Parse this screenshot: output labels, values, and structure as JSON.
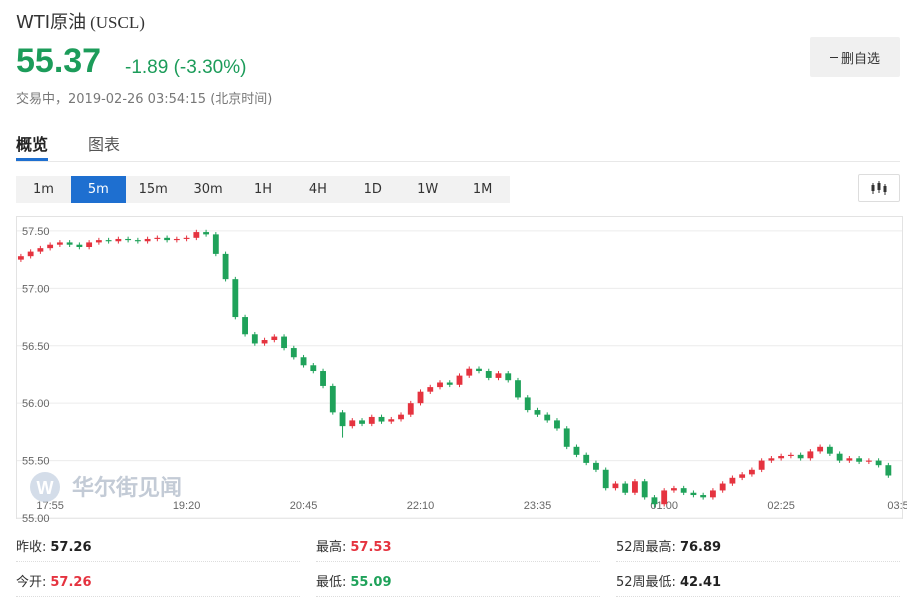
{
  "header": {
    "name": "WTI原油",
    "code": "(USCL)",
    "price": "55.37",
    "change": "-1.89",
    "change_pct": "(-3.30%)",
    "status": "交易中，2019-02-26 03:54:15 (北京时间)",
    "button": "删自选"
  },
  "tabs": [
    {
      "label": "概览",
      "active": true
    },
    {
      "label": "图表",
      "active": false
    }
  ],
  "intervals": {
    "options": [
      "1m",
      "5m",
      "15m",
      "30m",
      "1H",
      "4H",
      "1D",
      "1W",
      "1M"
    ],
    "active": 1
  },
  "chart_data": {
    "type": "candlestick",
    "watermark": "华尔街见闻",
    "up_color": "#e5333f",
    "down_color": "#1fa25a",
    "grid": true,
    "x": [
      0,
      1,
      2,
      3,
      4,
      5,
      6,
      7,
      8,
      9,
      10,
      11,
      12,
      13,
      14,
      15,
      16,
      17,
      18,
      19,
      20,
      21,
      22,
      23,
      24,
      25,
      26,
      27,
      28,
      29,
      30,
      31,
      32,
      33,
      34,
      35,
      36,
      37,
      38,
      39,
      40,
      41,
      42,
      43,
      44,
      45,
      46,
      47,
      48,
      49,
      50,
      51,
      52,
      53,
      54,
      55,
      56,
      57,
      58,
      59,
      60,
      61,
      62,
      63,
      64,
      65,
      66,
      67,
      68,
      69,
      70,
      71,
      72,
      73,
      74,
      75,
      76,
      77,
      78,
      79,
      80,
      81,
      82,
      83,
      84,
      85,
      86,
      87,
      88,
      89
    ],
    "open": [
      57.25,
      57.28,
      57.32,
      57.35,
      57.38,
      57.4,
      57.38,
      57.36,
      57.4,
      57.42,
      57.41,
      57.43,
      57.42,
      57.41,
      57.43,
      57.44,
      57.42,
      57.43,
      57.44,
      57.49,
      57.47,
      57.3,
      57.08,
      56.75,
      56.6,
      56.52,
      56.55,
      56.58,
      56.48,
      56.4,
      56.33,
      56.28,
      56.15,
      55.92,
      55.8,
      55.85,
      55.82,
      55.88,
      55.84,
      55.86,
      55.9,
      56.0,
      56.1,
      56.14,
      56.18,
      56.16,
      56.24,
      56.3,
      56.28,
      56.22,
      56.26,
      56.2,
      56.05,
      55.94,
      55.9,
      55.85,
      55.78,
      55.62,
      55.55,
      55.48,
      55.42,
      55.26,
      55.3,
      55.22,
      55.32,
      55.18,
      55.12,
      55.24,
      55.26,
      55.22,
      55.2,
      55.18,
      55.24,
      55.3,
      55.35,
      55.38,
      55.42,
      55.5,
      55.52,
      55.54,
      55.55,
      55.52,
      55.58,
      55.62,
      55.56,
      55.5,
      55.52,
      55.49,
      55.5,
      55.46
    ],
    "high": [
      57.3,
      57.34,
      57.37,
      57.4,
      57.42,
      57.42,
      57.4,
      57.42,
      57.44,
      57.44,
      57.45,
      57.45,
      57.44,
      57.45,
      57.46,
      57.46,
      57.45,
      57.46,
      57.51,
      57.51,
      57.49,
      57.32,
      57.1,
      56.77,
      56.62,
      56.57,
      56.6,
      56.6,
      56.5,
      56.42,
      56.35,
      56.3,
      56.17,
      55.94,
      55.87,
      55.87,
      55.9,
      55.9,
      55.88,
      55.92,
      56.02,
      56.12,
      56.16,
      56.2,
      56.2,
      56.26,
      56.32,
      56.32,
      56.3,
      56.28,
      56.28,
      56.22,
      56.07,
      55.96,
      55.92,
      55.87,
      55.8,
      55.64,
      55.57,
      55.5,
      55.44,
      55.32,
      55.32,
      55.34,
      55.34,
      55.2,
      55.26,
      55.28,
      55.28,
      55.24,
      55.22,
      55.26,
      55.32,
      55.37,
      55.4,
      55.44,
      55.52,
      55.54,
      55.56,
      55.57,
      55.57,
      55.6,
      55.64,
      55.64,
      55.58,
      55.54,
      55.54,
      55.52,
      55.52,
      55.48
    ],
    "low": [
      57.23,
      57.26,
      57.3,
      57.33,
      57.36,
      57.36,
      57.34,
      57.34,
      57.38,
      57.39,
      57.39,
      57.4,
      57.39,
      57.39,
      57.41,
      57.4,
      57.4,
      57.41,
      57.42,
      57.45,
      57.28,
      57.06,
      56.73,
      56.58,
      56.5,
      56.5,
      56.53,
      56.46,
      56.38,
      56.31,
      56.26,
      56.13,
      55.9,
      55.7,
      55.78,
      55.8,
      55.8,
      55.82,
      55.82,
      55.84,
      55.88,
      55.98,
      56.08,
      56.12,
      56.14,
      56.14,
      56.22,
      56.26,
      56.2,
      56.2,
      56.18,
      56.03,
      55.92,
      55.88,
      55.83,
      55.76,
      55.6,
      55.53,
      55.46,
      55.4,
      55.24,
      55.24,
      55.2,
      55.2,
      55.16,
      55.09,
      55.1,
      55.22,
      55.2,
      55.18,
      55.16,
      55.16,
      55.22,
      55.28,
      55.33,
      55.36,
      55.4,
      55.48,
      55.5,
      55.52,
      55.5,
      55.5,
      55.56,
      55.54,
      55.48,
      55.48,
      55.47,
      55.47,
      55.44,
      55.35
    ],
    "close": [
      57.28,
      57.32,
      57.35,
      57.38,
      57.4,
      57.38,
      57.36,
      57.4,
      57.42,
      57.41,
      57.43,
      57.42,
      57.41,
      57.43,
      57.44,
      57.42,
      57.43,
      57.44,
      57.49,
      57.47,
      57.3,
      57.08,
      56.75,
      56.6,
      56.52,
      56.55,
      56.58,
      56.48,
      56.4,
      56.33,
      56.28,
      56.15,
      55.92,
      55.8,
      55.85,
      55.82,
      55.88,
      55.84,
      55.86,
      55.9,
      56.0,
      56.1,
      56.14,
      56.18,
      56.16,
      56.24,
      56.3,
      56.28,
      56.22,
      56.26,
      56.2,
      56.05,
      55.94,
      55.9,
      55.85,
      55.78,
      55.62,
      55.55,
      55.48,
      55.42,
      55.26,
      55.3,
      55.22,
      55.32,
      55.18,
      55.12,
      55.24,
      55.26,
      55.22,
      55.2,
      55.18,
      55.24,
      55.3,
      55.35,
      55.38,
      55.42,
      55.5,
      55.52,
      55.54,
      55.55,
      55.52,
      55.58,
      55.62,
      55.56,
      55.5,
      55.52,
      55.49,
      55.5,
      55.46,
      55.37
    ],
    "xlim": [
      -0.4,
      90.4
    ],
    "xticks": [
      {
        "value": 3,
        "label": "17:55"
      },
      {
        "value": 17,
        "label": "19:20"
      },
      {
        "value": 29,
        "label": "20:45"
      },
      {
        "value": 41,
        "label": "22:10"
      },
      {
        "value": 53,
        "label": "23:35"
      },
      {
        "value": 66,
        "label": "01:00"
      },
      {
        "value": 78,
        "label": "02:25"
      },
      {
        "value": 90,
        "label": "03:5"
      }
    ],
    "ylim": [
      55.0,
      57.63
    ],
    "yticks": [
      {
        "value": 55.0,
        "label": "55.00"
      },
      {
        "value": 55.5,
        "label": "55.50"
      },
      {
        "value": 56.0,
        "label": "56.00"
      },
      {
        "value": 56.5,
        "label": "56.50"
      },
      {
        "value": 57.0,
        "label": "57.00"
      },
      {
        "value": 57.5,
        "label": "57.50"
      }
    ]
  },
  "stats": [
    [
      {
        "label": "昨收:",
        "value": "57.26",
        "tone": "neutral"
      },
      {
        "label": "最高:",
        "value": "57.53",
        "tone": "up"
      },
      {
        "label": "52周最高:",
        "value": "76.89",
        "tone": "neutral"
      }
    ],
    [
      {
        "label": "今开:",
        "value": "57.26",
        "tone": "up"
      },
      {
        "label": "最低:",
        "value": "55.09",
        "tone": "down"
      },
      {
        "label": "52周最低:",
        "value": "42.41",
        "tone": "neutral"
      }
    ]
  ]
}
